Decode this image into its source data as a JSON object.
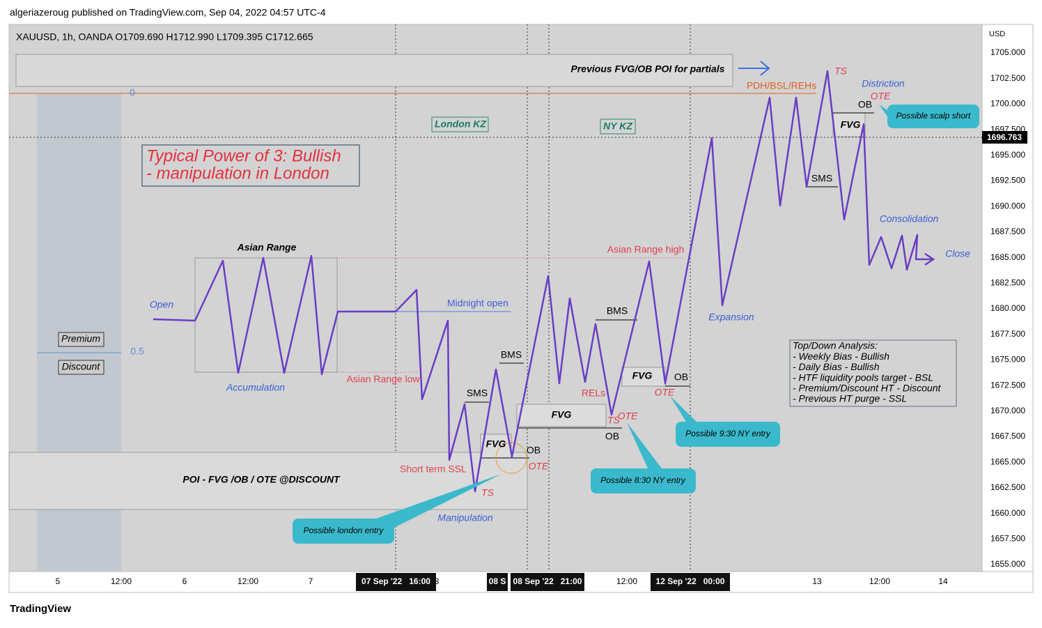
{
  "header": "algeriazeroug published on TradingView.com, Sep 04, 2022 04:57 UTC-4",
  "symbol": "XAUUSD, 1h, OANDA  O1709.690  H1712.990  L1709.395  C1712.665",
  "currency": "USD",
  "price_scale": [
    "1705.000",
    "1702.500",
    "1700.000",
    "1697.500",
    "1695.000",
    "1692.500",
    "1690.000",
    "1687.500",
    "1685.000",
    "1682.500",
    "1680.000",
    "1677.500",
    "1675.000",
    "1672.500",
    "1670.000",
    "1667.500",
    "1665.000",
    "1662.500",
    "1660.000",
    "1657.500",
    "1655.000"
  ],
  "current_price": "1696.763",
  "time_scale": [
    "5",
    "12:00",
    "6",
    "12:00",
    "7",
    "8",
    "12:00",
    "13",
    "12:00",
    "14"
  ],
  "time_badges": [
    "07 Sep '22   16:00",
    "08 S",
    "08 Sep '22   21:00",
    "12 Sep '22   00:00"
  ],
  "title_box": [
    "Typical Power of 3: Bullish",
    "- manipulation in London"
  ],
  "annotations": [
    "Previous FVG/OB POI for partials",
    "PDH/BSL/REHs",
    "TS",
    "Distriction",
    "OTE",
    "OB",
    "FVG",
    "SMS",
    "London KZ",
    "NY KZ",
    "Asian Range",
    "Open",
    "Midnight open",
    "Asian Range high",
    "Consolidation",
    "Close",
    "Expansion",
    "BMS",
    "Premium",
    "Discount",
    "0",
    "0.5",
    "Accumulation",
    "Asian Range low",
    "BMS",
    "SMS",
    "FVG",
    "OB",
    "OTE",
    "RELs",
    "FVG",
    "TS",
    "OTE",
    "OB",
    "FVG",
    "OB",
    "OTE",
    "Short term SSL",
    "POI - FVG /OB / OTE @DISCOUNT",
    "TS",
    "Manipulation"
  ],
  "callouts": [
    "Possible scalp short",
    "Possible 9:30 NY entry",
    "Possible 8:30 NY entry",
    "Possible london entry"
  ],
  "analysis": [
    "Top/Down Analysis:",
    "- Weekly Bias - Bullish",
    "- Daily Bias - Bullish",
    "- HTF liquidity pools target - BSL",
    "- Premium/Discount HT - Discount",
    "- Previous HT purge - SSL"
  ],
  "footer": "TradingView"
}
